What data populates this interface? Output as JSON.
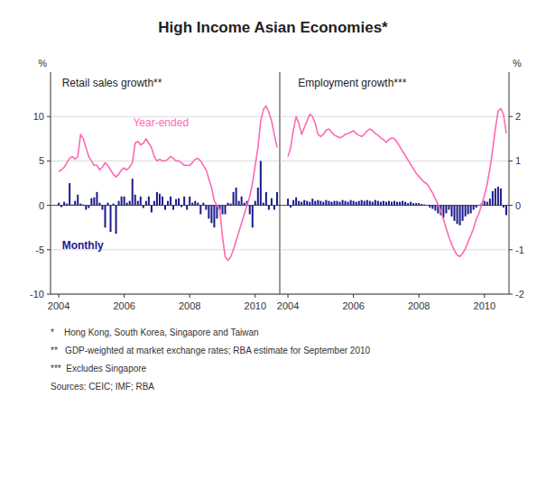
{
  "title": "High Income Asian Economies*",
  "notes": [
    "*    Hong Kong, South Korea, Singapore and Taiwan",
    "**   GDP-weighted at market exchange rates; RBA estimate for September 2010",
    "***  Excludes Singapore",
    "Sources: CEIC; IMF; RBA"
  ],
  "chart_data": [
    {
      "type": "bar",
      "subtitle": "Retail sales growth**",
      "ylabel": "%",
      "grid": true,
      "xlim": [
        2003.75,
        2010.75
      ],
      "xticks": [
        2004,
        2006,
        2008,
        2010
      ],
      "ylim": [
        -10,
        15
      ],
      "yticks": [
        -10,
        -5,
        0,
        5,
        10
      ],
      "x": [
        2004.0,
        2004.083,
        2004.167,
        2004.25,
        2004.333,
        2004.417,
        2004.5,
        2004.583,
        2004.667,
        2004.75,
        2004.833,
        2004.917,
        2005.0,
        2005.083,
        2005.167,
        2005.25,
        2005.333,
        2005.417,
        2005.5,
        2005.583,
        2005.667,
        2005.75,
        2005.833,
        2005.917,
        2006.0,
        2006.083,
        2006.167,
        2006.25,
        2006.333,
        2006.417,
        2006.5,
        2006.583,
        2006.667,
        2006.75,
        2006.833,
        2006.917,
        2007.0,
        2007.083,
        2007.167,
        2007.25,
        2007.333,
        2007.417,
        2007.5,
        2007.583,
        2007.667,
        2007.75,
        2007.833,
        2007.917,
        2008.0,
        2008.083,
        2008.167,
        2008.25,
        2008.333,
        2008.417,
        2008.5,
        2008.583,
        2008.667,
        2008.75,
        2008.833,
        2008.917,
        2009.0,
        2009.083,
        2009.167,
        2009.25,
        2009.333,
        2009.417,
        2009.5,
        2009.583,
        2009.667,
        2009.75,
        2009.833,
        2009.917,
        2010.0,
        2010.083,
        2010.167,
        2010.25,
        2010.333,
        2010.417,
        2010.5,
        2010.583,
        2010.667
      ],
      "series": [
        {
          "name": "Monthly",
          "type": "bar",
          "color": "#1a1a8c",
          "values": [
            0.3,
            -0.2,
            0.4,
            0.2,
            2.5,
            0.1,
            0.5,
            1.2,
            0.2,
            0.1,
            -0.5,
            -0.3,
            0.8,
            0.9,
            1.5,
            0.3,
            -0.5,
            -2.5,
            0.3,
            -3.0,
            0.2,
            -3.2,
            0.5,
            1.0,
            1.0,
            0.3,
            0.5,
            3.0,
            1.2,
            0.5,
            1.0,
            -0.3,
            0.5,
            1.0,
            -0.8,
            0.5,
            1.5,
            1.3,
            1.0,
            -0.5,
            0.5,
            1.0,
            -0.5,
            0.7,
            0.8,
            -0.2,
            1.0,
            -0.5,
            1.0,
            0.3,
            0.5,
            0.3,
            -1.0,
            0.3,
            -0.5,
            -1.5,
            -2.0,
            -2.5,
            -1.5,
            -0.5,
            -1.0,
            -1.0,
            0.3,
            0.2,
            1.5,
            2.0,
            0.5,
            1.0,
            0.3,
            0.5,
            -1.0,
            -2.5,
            0.5,
            2.0,
            5.0,
            0.3,
            1.5,
            -0.5,
            0.8,
            -0.5,
            1.5
          ]
        },
        {
          "name": "Year-ended",
          "type": "line",
          "color": "#FF69B4",
          "values": [
            3.8,
            4.0,
            4.3,
            4.8,
            5.3,
            5.5,
            5.2,
            5.5,
            8.0,
            7.5,
            6.5,
            5.5,
            5.0,
            4.5,
            4.5,
            4.0,
            4.3,
            4.8,
            4.5,
            4.0,
            3.5,
            3.2,
            3.5,
            4.0,
            4.2,
            4.0,
            4.3,
            4.8,
            7.0,
            7.2,
            6.8,
            7.0,
            7.5,
            7.0,
            6.5,
            5.5,
            5.0,
            5.2,
            5.0,
            5.0,
            5.2,
            5.5,
            5.3,
            5.0,
            5.0,
            4.8,
            4.5,
            4.5,
            4.5,
            4.8,
            5.2,
            5.3,
            5.0,
            4.5,
            4.0,
            3.0,
            2.0,
            0.5,
            0.0,
            -0.5,
            -3.5,
            -5.8,
            -6.2,
            -5.8,
            -5.0,
            -4.0,
            -3.0,
            -2.0,
            -1.0,
            0.0,
            1.0,
            2.5,
            4.5,
            6.5,
            9.5,
            10.8,
            11.2,
            10.5,
            9.5,
            8.0,
            6.5
          ]
        }
      ]
    },
    {
      "type": "bar",
      "subtitle": "Employment growth***",
      "ylabel": "%",
      "grid": true,
      "xlim": [
        2003.75,
        2010.75
      ],
      "xticks": [
        2004,
        2006,
        2008,
        2010
      ],
      "ylim": [
        -2,
        3
      ],
      "yticks": [
        -2,
        -1,
        0,
        1,
        2
      ],
      "x": [
        2004.0,
        2004.083,
        2004.167,
        2004.25,
        2004.333,
        2004.417,
        2004.5,
        2004.583,
        2004.667,
        2004.75,
        2004.833,
        2004.917,
        2005.0,
        2005.083,
        2005.167,
        2005.25,
        2005.333,
        2005.417,
        2005.5,
        2005.583,
        2005.667,
        2005.75,
        2005.833,
        2005.917,
        2006.0,
        2006.083,
        2006.167,
        2006.25,
        2006.333,
        2006.417,
        2006.5,
        2006.583,
        2006.667,
        2006.75,
        2006.833,
        2006.917,
        2007.0,
        2007.083,
        2007.167,
        2007.25,
        2007.333,
        2007.417,
        2007.5,
        2007.583,
        2007.667,
        2007.75,
        2007.833,
        2007.917,
        2008.0,
        2008.083,
        2008.167,
        2008.25,
        2008.333,
        2008.417,
        2008.5,
        2008.583,
        2008.667,
        2008.75,
        2008.833,
        2008.917,
        2009.0,
        2009.083,
        2009.167,
        2009.25,
        2009.333,
        2009.417,
        2009.5,
        2009.583,
        2009.667,
        2009.75,
        2009.833,
        2009.917,
        2010.0,
        2010.083,
        2010.167,
        2010.25,
        2010.333,
        2010.417,
        2010.5,
        2010.583,
        2010.667
      ],
      "series": [
        {
          "type": "bar",
          "color": "#1a1a8c",
          "values": [
            0.15,
            -0.05,
            0.12,
            0.18,
            0.1,
            0.08,
            0.12,
            0.1,
            0.08,
            0.15,
            0.1,
            0.12,
            0.1,
            0.08,
            0.12,
            0.1,
            0.08,
            0.1,
            0.1,
            0.08,
            0.12,
            0.1,
            0.08,
            0.12,
            0.1,
            0.08,
            0.1,
            0.12,
            0.1,
            0.12,
            0.1,
            0.08,
            0.12,
            0.1,
            0.08,
            0.1,
            0.08,
            0.1,
            0.08,
            0.1,
            0.08,
            0.08,
            0.1,
            0.08,
            0.05,
            0.08,
            0.05,
            0.05,
            0.05,
            0.03,
            0.02,
            0.0,
            -0.05,
            -0.08,
            -0.12,
            -0.18,
            -0.22,
            -0.28,
            -0.18,
            -0.1,
            -0.25,
            -0.35,
            -0.42,
            -0.45,
            -0.35,
            -0.25,
            -0.2,
            -0.18,
            -0.1,
            -0.05,
            0.0,
            0.05,
            0.1,
            0.08,
            0.15,
            0.32,
            0.38,
            0.42,
            0.38,
            -0.05,
            -0.22
          ]
        },
        {
          "type": "line",
          "color": "#FF69B4",
          "values": [
            1.1,
            1.3,
            1.7,
            2.0,
            1.85,
            1.6,
            1.75,
            1.9,
            2.05,
            2.0,
            1.85,
            1.6,
            1.55,
            1.6,
            1.7,
            1.72,
            1.65,
            1.58,
            1.55,
            1.52,
            1.55,
            1.6,
            1.62,
            1.65,
            1.68,
            1.62,
            1.58,
            1.55,
            1.6,
            1.68,
            1.72,
            1.68,
            1.62,
            1.58,
            1.52,
            1.48,
            1.42,
            1.48,
            1.52,
            1.5,
            1.42,
            1.32,
            1.22,
            1.12,
            1.02,
            0.92,
            0.82,
            0.72,
            0.65,
            0.58,
            0.52,
            0.48,
            0.38,
            0.28,
            0.15,
            0.02,
            -0.12,
            -0.32,
            -0.52,
            -0.72,
            -0.88,
            -1.02,
            -1.12,
            -1.15,
            -1.08,
            -0.98,
            -0.82,
            -0.68,
            -0.52,
            -0.32,
            -0.18,
            0.02,
            0.22,
            0.48,
            0.82,
            1.25,
            1.72,
            2.12,
            2.18,
            2.05,
            1.62
          ]
        }
      ]
    }
  ]
}
